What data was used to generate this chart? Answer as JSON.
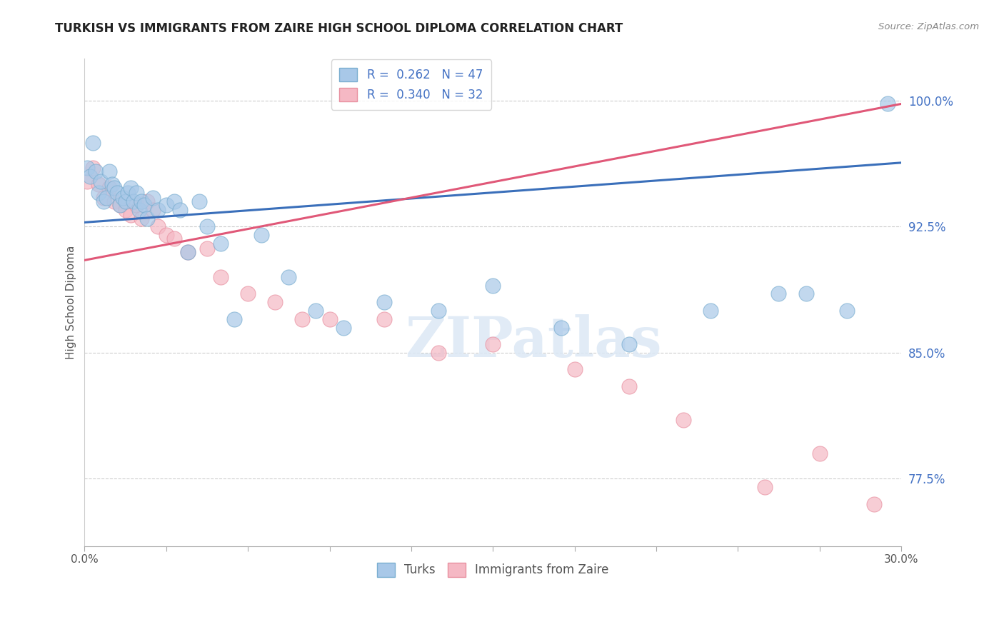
{
  "title": "TURKISH VS IMMIGRANTS FROM ZAIRE HIGH SCHOOL DIPLOMA CORRELATION CHART",
  "source": "Source: ZipAtlas.com",
  "ylabel": "High School Diploma",
  "xlim": [
    0.0,
    0.3
  ],
  "ylim": [
    0.735,
    1.025
  ],
  "xticks": [
    0.0,
    0.03,
    0.06,
    0.09,
    0.12,
    0.15,
    0.18,
    0.21,
    0.24,
    0.27,
    0.3
  ],
  "xticklabels": [
    "0.0%",
    "",
    "",
    "",
    "",
    "",
    "",
    "",
    "",
    "",
    "30.0%"
  ],
  "yticks": [
    0.775,
    0.85,
    0.925,
    1.0
  ],
  "yticklabels": [
    "77.5%",
    "85.0%",
    "92.5%",
    "100.0%"
  ],
  "blue_color": "#a8c8e8",
  "blue_edge_color": "#7aaed0",
  "blue_line_color": "#3a6fba",
  "pink_color": "#f5b8c4",
  "pink_edge_color": "#e890a0",
  "pink_line_color": "#e05878",
  "legend_blue_label": "R =  0.262   N = 47",
  "legend_pink_label": "R =  0.340   N = 32",
  "turks_label": "Turks",
  "zaire_label": "Immigrants from Zaire",
  "watermark": "ZIPatlas",
  "blue_scatter_x": [
    0.001,
    0.002,
    0.003,
    0.004,
    0.005,
    0.006,
    0.007,
    0.008,
    0.009,
    0.01,
    0.011,
    0.012,
    0.013,
    0.014,
    0.015,
    0.016,
    0.017,
    0.018,
    0.019,
    0.02,
    0.021,
    0.022,
    0.023,
    0.025,
    0.027,
    0.03,
    0.033,
    0.035,
    0.038,
    0.042,
    0.045,
    0.05,
    0.055,
    0.065,
    0.075,
    0.085,
    0.095,
    0.11,
    0.13,
    0.15,
    0.175,
    0.2,
    0.23,
    0.255,
    0.265,
    0.28,
    0.295
  ],
  "blue_scatter_y": [
    0.96,
    0.955,
    0.975,
    0.958,
    0.945,
    0.952,
    0.94,
    0.942,
    0.958,
    0.95,
    0.948,
    0.945,
    0.938,
    0.942,
    0.94,
    0.945,
    0.948,
    0.94,
    0.945,
    0.935,
    0.94,
    0.938,
    0.93,
    0.942,
    0.935,
    0.938,
    0.94,
    0.935,
    0.91,
    0.94,
    0.925,
    0.915,
    0.87,
    0.92,
    0.895,
    0.875,
    0.865,
    0.88,
    0.875,
    0.89,
    0.865,
    0.855,
    0.875,
    0.885,
    0.885,
    0.875,
    0.998
  ],
  "pink_scatter_x": [
    0.001,
    0.003,
    0.005,
    0.007,
    0.009,
    0.011,
    0.013,
    0.015,
    0.017,
    0.019,
    0.021,
    0.023,
    0.025,
    0.027,
    0.03,
    0.033,
    0.038,
    0.045,
    0.05,
    0.06,
    0.07,
    0.08,
    0.09,
    0.11,
    0.13,
    0.15,
    0.18,
    0.2,
    0.22,
    0.25,
    0.27,
    0.29
  ],
  "pink_scatter_y": [
    0.952,
    0.96,
    0.95,
    0.942,
    0.948,
    0.94,
    0.938,
    0.935,
    0.932,
    0.938,
    0.93,
    0.94,
    0.935,
    0.925,
    0.92,
    0.918,
    0.91,
    0.912,
    0.895,
    0.885,
    0.88,
    0.87,
    0.87,
    0.87,
    0.85,
    0.855,
    0.84,
    0.83,
    0.81,
    0.77,
    0.79,
    0.76
  ],
  "blue_line_x0": 0.0,
  "blue_line_y0": 0.9275,
  "blue_line_x1": 0.3,
  "blue_line_y1": 0.963,
  "pink_line_x0": 0.0,
  "pink_line_y0": 0.905,
  "pink_line_x1": 0.3,
  "pink_line_y1": 0.998
}
